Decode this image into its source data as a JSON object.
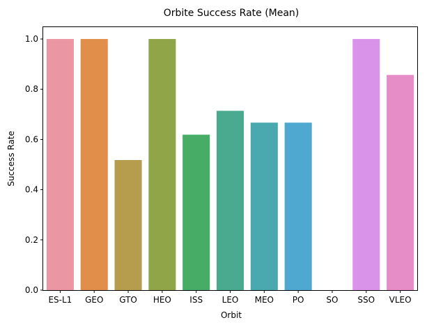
{
  "chart_data": {
    "type": "bar",
    "title": "Orbite Success Rate (Mean)",
    "xlabel": "Orbit",
    "ylabel": "Success Rate",
    "categories": [
      "ES-L1",
      "GEO",
      "GTO",
      "HEO",
      "ISS",
      "LEO",
      "MEO",
      "PO",
      "SO",
      "SSO",
      "VLEO"
    ],
    "values": [
      1.0,
      1.0,
      0.518,
      1.0,
      0.619,
      0.714,
      0.667,
      0.667,
      0.0,
      1.0,
      0.857
    ],
    "colors": [
      "#ea96a3",
      "#e08e4a",
      "#b59d4d",
      "#8fa548",
      "#47ac66",
      "#49aa90",
      "#4aa9ae",
      "#4fa8d0",
      "#a9a0ef",
      "#d993e8",
      "#e68dc8"
    ],
    "ylim": [
      0,
      1.05
    ],
    "yticks": [
      "0.0",
      "0.2",
      "0.4",
      "0.6",
      "0.8",
      "1.0"
    ],
    "ytick_values": [
      0,
      0.2,
      0.4,
      0.6,
      0.8,
      1.0
    ],
    "grid": false,
    "legend": "none"
  }
}
